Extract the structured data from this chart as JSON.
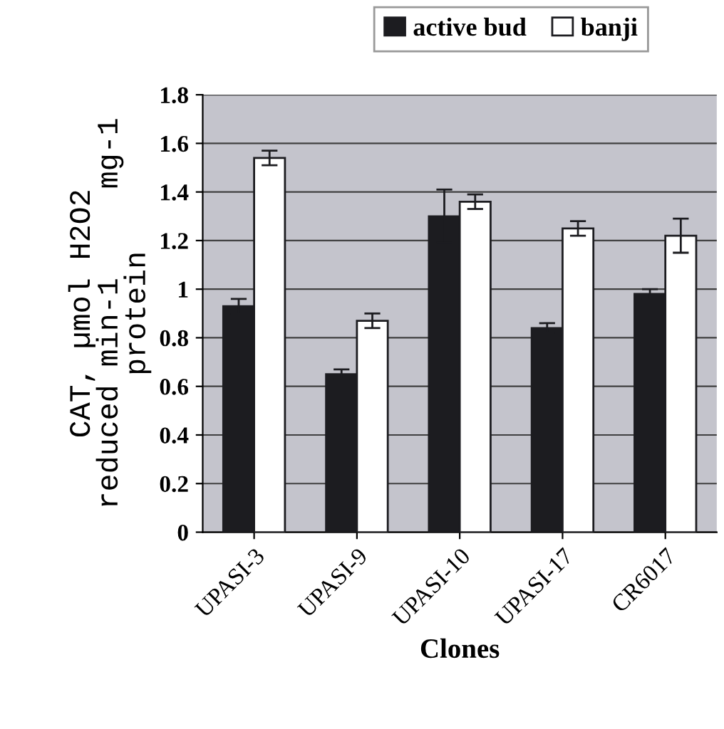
{
  "chart_data": {
    "type": "bar",
    "categories": [
      "UPASI-3",
      "UPASI-9",
      "UPASI-10",
      "UPASI-17",
      "CR6017"
    ],
    "series": [
      {
        "name": "active bud",
        "color": "#1c1c20",
        "values": [
          0.93,
          0.65,
          1.3,
          0.84,
          0.98
        ],
        "errors": [
          0.03,
          0.02,
          0.11,
          0.02,
          0.02
        ]
      },
      {
        "name": "banji",
        "color": "#ffffff",
        "values": [
          1.54,
          0.87,
          1.36,
          1.25,
          1.22
        ],
        "errors": [
          0.03,
          0.03,
          0.03,
          0.03,
          0.07
        ]
      }
    ],
    "xlabel": "Clones",
    "ylabel": "CAT, µmol H2O2\nreduced min-1     mg-1\nprotein",
    "ylim": [
      0,
      1.8
    ],
    "yticks": [
      0,
      0.2,
      0.4,
      0.6,
      0.8,
      1,
      1.2,
      1.4,
      1.6,
      1.8
    ],
    "grid": "y",
    "legend": "top"
  }
}
